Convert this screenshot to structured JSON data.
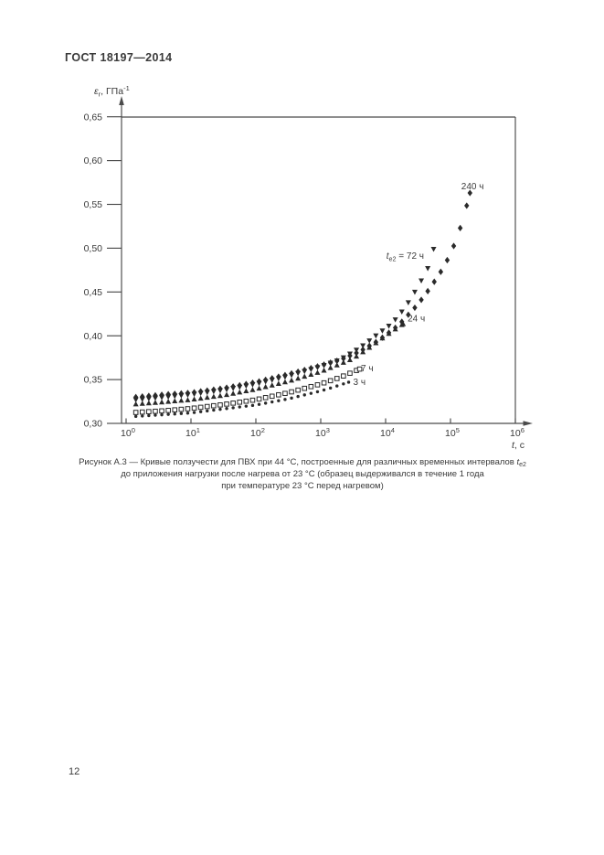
{
  "page": {
    "header": "ГОСТ 18197—2014",
    "page_number": "12"
  },
  "chart_data": {
    "type": "scatter",
    "title": "",
    "x_axis": {
      "scale": "log10",
      "label_parts": [
        {
          "t": "t",
          "s": "i"
        },
        {
          "t": ", с"
        }
      ],
      "exponents": [
        0,
        1,
        2,
        3,
        4,
        5,
        6
      ],
      "range_log": [
        0,
        6
      ],
      "unit": "с"
    },
    "y_axis": {
      "label_parts": [
        {
          "t": "ε",
          "s": "i"
        },
        {
          "t": "r",
          "s": "sub"
        },
        {
          "t": ", ГПа"
        },
        {
          "t": "-1",
          "s": "sup"
        }
      ],
      "min": 0.3,
      "max": 0.65,
      "step": 0.05,
      "tick_labels": [
        "0,30",
        "0,35",
        "0,40",
        "0,45",
        "0,50",
        "0,55",
        "0,60",
        "0,65"
      ],
      "unit": "ГПа⁻¹"
    },
    "grid": false,
    "frame": {
      "top": true,
      "right": true
    },
    "point_step_log": 0.1,
    "series": [
      {
        "id": "te2-3h",
        "name": "te2 = 3 ч",
        "marker": "dot",
        "points": [
          [
            0.15,
            0.308
          ],
          [
            0.6,
            0.31
          ],
          [
            1.0,
            0.312
          ],
          [
            1.5,
            0.3165
          ],
          [
            2.0,
            0.321
          ],
          [
            2.5,
            0.328
          ],
          [
            3.0,
            0.337
          ],
          [
            3.2,
            0.3415
          ],
          [
            3.43,
            0.347
          ]
        ]
      },
      {
        "id": "te2-7h",
        "name": "te2 = 7 ч",
        "marker": "square-open",
        "points": [
          [
            0.15,
            0.3125
          ],
          [
            0.6,
            0.3145
          ],
          [
            1.0,
            0.317
          ],
          [
            1.5,
            0.3215
          ],
          [
            2.0,
            0.327
          ],
          [
            2.5,
            0.335
          ],
          [
            3.0,
            0.345
          ],
          [
            3.3,
            0.3525
          ],
          [
            3.6,
            0.362
          ]
        ]
      },
      {
        "id": "te2-24h",
        "name": "te2 = 24 ч",
        "marker": "triangle-up",
        "points": [
          [
            0.15,
            0.322
          ],
          [
            0.6,
            0.3245
          ],
          [
            1.0,
            0.327
          ],
          [
            1.5,
            0.332
          ],
          [
            2.0,
            0.339
          ],
          [
            2.5,
            0.348
          ],
          [
            3.0,
            0.359
          ],
          [
            3.5,
            0.374
          ],
          [
            3.8,
            0.389
          ],
          [
            4.0,
            0.4
          ],
          [
            4.27,
            0.4135
          ]
        ]
      },
      {
        "id": "te2-72h",
        "name": "te2 = 72 ч",
        "marker": "triangle-down",
        "points": [
          [
            0.15,
            0.327
          ],
          [
            0.6,
            0.33
          ],
          [
            1.0,
            0.333
          ],
          [
            1.5,
            0.338
          ],
          [
            2.0,
            0.345
          ],
          [
            2.5,
            0.354
          ],
          [
            3.0,
            0.365
          ],
          [
            3.3,
            0.373
          ],
          [
            3.6,
            0.386
          ],
          [
            3.9,
            0.403
          ],
          [
            4.1,
            0.414
          ],
          [
            4.3,
            0.432
          ],
          [
            4.5,
            0.456
          ],
          [
            4.65,
            0.477
          ],
          [
            4.74,
            0.499
          ]
        ]
      },
      {
        "id": "te2-240h",
        "name": "te2 = 240 ч",
        "marker": "diamond",
        "points": [
          [
            0.15,
            0.33
          ],
          [
            0.6,
            0.333
          ],
          [
            1.0,
            0.335
          ],
          [
            1.5,
            0.34
          ],
          [
            2.0,
            0.347
          ],
          [
            2.5,
            0.356
          ],
          [
            3.0,
            0.366
          ],
          [
            3.3,
            0.3725
          ],
          [
            3.6,
            0.382
          ],
          [
            3.9,
            0.395
          ],
          [
            4.2,
            0.412
          ],
          [
            4.5,
            0.436
          ],
          [
            4.7,
            0.456
          ],
          [
            4.85,
            0.473
          ],
          [
            5.0,
            0.493
          ],
          [
            5.1,
            0.512
          ],
          [
            5.2,
            0.534
          ],
          [
            5.3,
            0.563
          ]
        ]
      }
    ],
    "annotations": [
      {
        "id": "label-240h",
        "parts": [
          {
            "t": "240 ч"
          }
        ],
        "log_t": 5.34,
        "eps": 0.567,
        "anchor": "middle"
      },
      {
        "id": "label-72h",
        "parts": [
          {
            "t": "t",
            "s": "i"
          },
          {
            "t": "e2",
            "s": "sub"
          },
          {
            "t": " = 72 ч"
          }
        ],
        "log_t": 4.01,
        "eps": 0.488,
        "anchor": "start"
      },
      {
        "id": "label-24h",
        "parts": [
          {
            "t": "24 ч"
          }
        ],
        "log_t": 4.34,
        "eps": 0.4165,
        "anchor": "start"
      },
      {
        "id": "label-7h",
        "parts": [
          {
            "t": "7 ч"
          }
        ],
        "log_t": 3.62,
        "eps": 0.3595,
        "anchor": "start"
      },
      {
        "id": "label-3h",
        "parts": [
          {
            "t": "3 ч"
          }
        ],
        "log_t": 3.5,
        "eps": 0.344,
        "anchor": "start"
      }
    ],
    "colors": {
      "ink": "#2a2a2a",
      "axis": "#4a4a4a",
      "text": "#3a3a3a"
    }
  },
  "caption": {
    "line1": {
      "prefix": "Рисунок А.3 — Кривые ползучести для ПВХ при 44 °С, построенные для различных временных интервалов ",
      "symbol": "t",
      "symbol_sub": "e2"
    },
    "line2": "до приложения нагрузки после нагрева от 23 °С  (образец выдерживался в течение 1 года",
    "line3": "при температуре 23 °С перед нагревом)"
  }
}
